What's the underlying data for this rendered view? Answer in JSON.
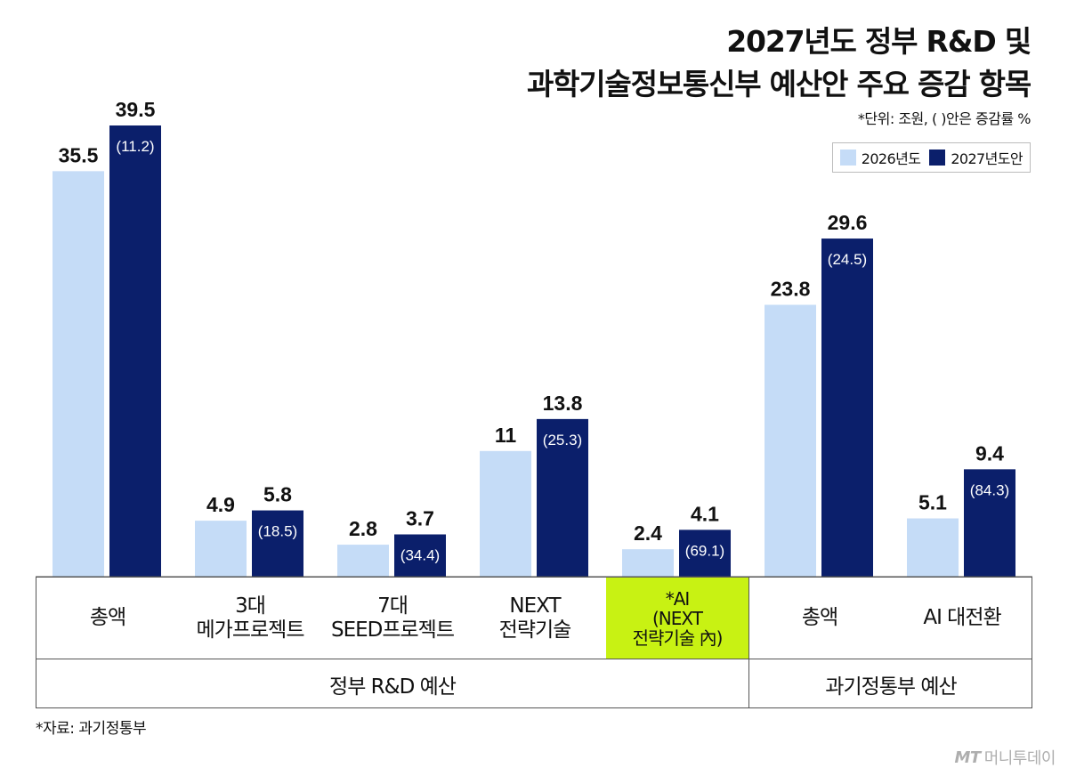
{
  "header": {
    "title_line1": "2027년도 정부 R&D 및",
    "title_line2": "과학기술정보통신부 예산안 주요 증감 항목",
    "unit_note": "*단위: 조원, ( )안은 증감률 %"
  },
  "colors": {
    "series_2026": "#c5dcf7",
    "series_2027": "#0b1f6b",
    "highlight": "#c8f213"
  },
  "chart_data": {
    "type": "bar",
    "title": "2027년도 정부 R&D 및 과학기술정보통신부 예산안 주요 증감 항목",
    "unit": "조원",
    "categories": [
      [
        "총액"
      ],
      [
        "3대",
        "메가프로젝트"
      ],
      [
        "7대",
        "SEED프로젝트"
      ],
      [
        "NEXT",
        "전략기술"
      ],
      [
        "*AI",
        "(NEXT",
        "전략기술 內)"
      ],
      [
        "총액"
      ],
      [
        "AI 대전환"
      ]
    ],
    "series": [
      {
        "name": "2026년도",
        "values": [
          35.5,
          4.9,
          2.8,
          11,
          2.4,
          23.8,
          5.1
        ],
        "labels": [
          "35.5",
          "4.9",
          "2.8",
          "11",
          "2.4",
          "23.8",
          "5.1"
        ]
      },
      {
        "name": "2027년도안",
        "values": [
          39.5,
          5.8,
          3.7,
          13.8,
          4.1,
          29.6,
          9.4
        ],
        "labels": [
          "39.5",
          "5.8",
          "3.7",
          "13.8",
          "4.1",
          "29.6",
          "9.4"
        ]
      }
    ],
    "growth_rate": [
      "(11.2)",
      "(18.5)",
      "(34.4)",
      "(25.3)",
      "(69.1)",
      "(24.5)",
      "(84.3)"
    ],
    "highlighted_category": 4,
    "groups": [
      {
        "label": "정부 R&D 예산",
        "span": 5
      },
      {
        "label": "과기정통부 예산",
        "span": 2
      }
    ],
    "ylim": [
      0,
      40
    ],
    "grid": false,
    "legend_position": "top-right"
  },
  "footer": {
    "source": "*자료: 과기정통부",
    "logo_mt": "MT",
    "logo_text": "머니투데이"
  }
}
